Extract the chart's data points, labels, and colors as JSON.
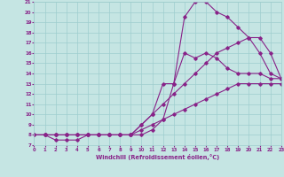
{
  "xlabel": "Windchill (Refroidissement éolien,°C)",
  "xlim": [
    0,
    23
  ],
  "ylim": [
    7,
    21
  ],
  "xticks": [
    0,
    1,
    2,
    3,
    4,
    5,
    6,
    7,
    8,
    9,
    10,
    11,
    12,
    13,
    14,
    15,
    16,
    17,
    18,
    19,
    20,
    21,
    22,
    23
  ],
  "yticks": [
    7,
    8,
    9,
    10,
    11,
    12,
    13,
    14,
    15,
    16,
    17,
    18,
    19,
    20,
    21
  ],
  "bg_color": "#c5e5e3",
  "line_color": "#882288",
  "grid_color": "#9ecece",
  "curves": [
    {
      "x": [
        0,
        1,
        2,
        3,
        4,
        5,
        6,
        7,
        8,
        9,
        10,
        11,
        12,
        13,
        14,
        15,
        16,
        17,
        18,
        19,
        20,
        21,
        22,
        23
      ],
      "y": [
        8,
        8,
        8,
        8,
        8,
        8,
        8,
        8,
        8,
        8,
        8.5,
        9,
        9.5,
        10,
        10.5,
        11,
        11.5,
        12,
        12.5,
        13,
        13,
        13,
        13,
        13
      ]
    },
    {
      "x": [
        0,
        1,
        2,
        3,
        4,
        5,
        6,
        7,
        8,
        9,
        10,
        11,
        12,
        13,
        14,
        15,
        16,
        17,
        18,
        19,
        20,
        21,
        22,
        23
      ],
      "y": [
        8,
        8,
        8,
        8,
        8,
        8,
        8,
        8,
        8,
        8,
        9,
        10,
        11,
        12,
        13,
        14,
        15,
        16,
        16.5,
        17,
        17.5,
        17.5,
        16,
        13.5
      ]
    },
    {
      "x": [
        0,
        1,
        2,
        3,
        4,
        5,
        6,
        7,
        8,
        9,
        10,
        11,
        12,
        13,
        14,
        15,
        16,
        17,
        18,
        19,
        20,
        21,
        22,
        23
      ],
      "y": [
        8,
        8,
        7.5,
        7.5,
        7.5,
        8,
        8,
        8,
        8,
        8,
        9,
        10,
        13,
        13,
        16,
        15.5,
        16,
        15.5,
        14.5,
        14,
        14,
        14,
        13.5,
        13.5
      ]
    },
    {
      "x": [
        0,
        1,
        2,
        3,
        4,
        5,
        6,
        7,
        8,
        9,
        10,
        11,
        12,
        13,
        14,
        15,
        16,
        17,
        18,
        19,
        20,
        21,
        22,
        23
      ],
      "y": [
        8,
        8,
        8,
        8,
        8,
        8,
        8,
        8,
        8,
        8,
        8,
        8.5,
        9.5,
        13,
        19.5,
        21,
        21,
        20,
        19.5,
        18.5,
        17.5,
        16,
        14,
        13.5
      ]
    }
  ]
}
